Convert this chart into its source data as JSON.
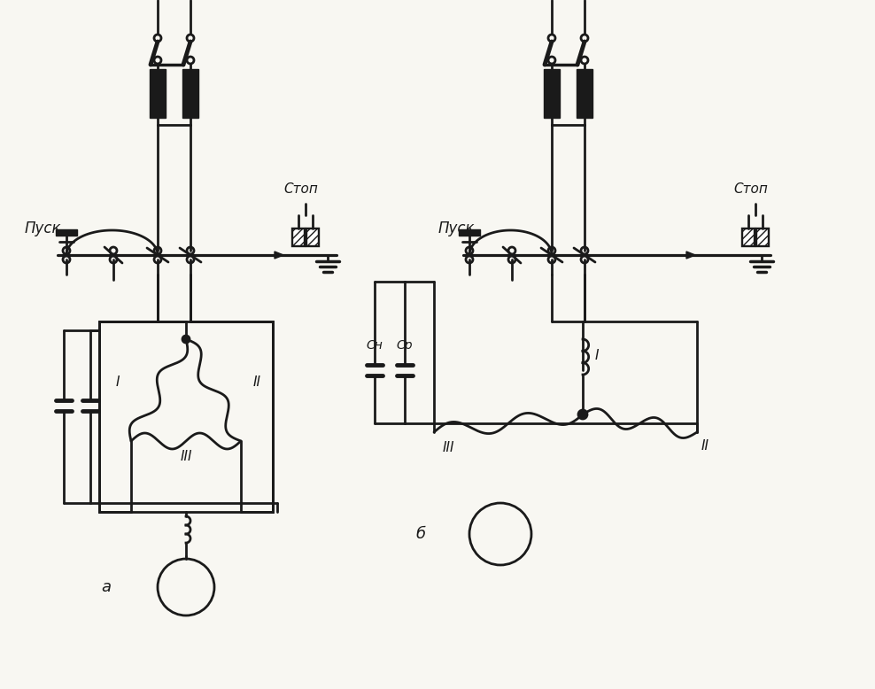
{
  "bg": "#f8f7f2",
  "lc": "#1a1a1a",
  "lw": 2.0,
  "label_a": "a",
  "label_b": "б",
  "label_pusk": "Пуск",
  "label_stop": "Стоп",
  "label_I": "I",
  "label_II": "II",
  "label_III": "III",
  "label_Cn": "Cн",
  "label_Cp": "Cр"
}
